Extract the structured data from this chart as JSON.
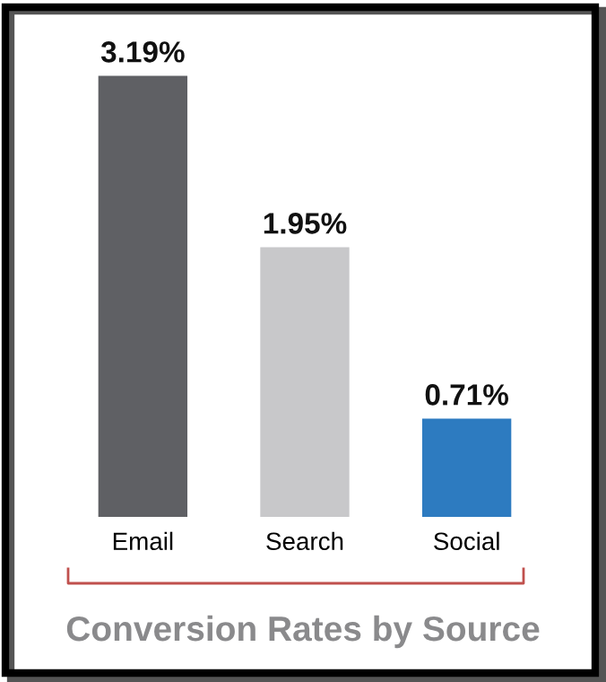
{
  "chart_data": {
    "type": "bar",
    "title": "Conversion Rates by Source",
    "categories": [
      "Email",
      "Search",
      "Social"
    ],
    "values": [
      3.19,
      1.95,
      0.71
    ],
    "colors": [
      "#5f6064",
      "#c8c8ca",
      "#2d7bc0"
    ],
    "value_labels": [
      "3.19%",
      "1.95%",
      "0.71%"
    ],
    "grid": false,
    "legend": false
  }
}
